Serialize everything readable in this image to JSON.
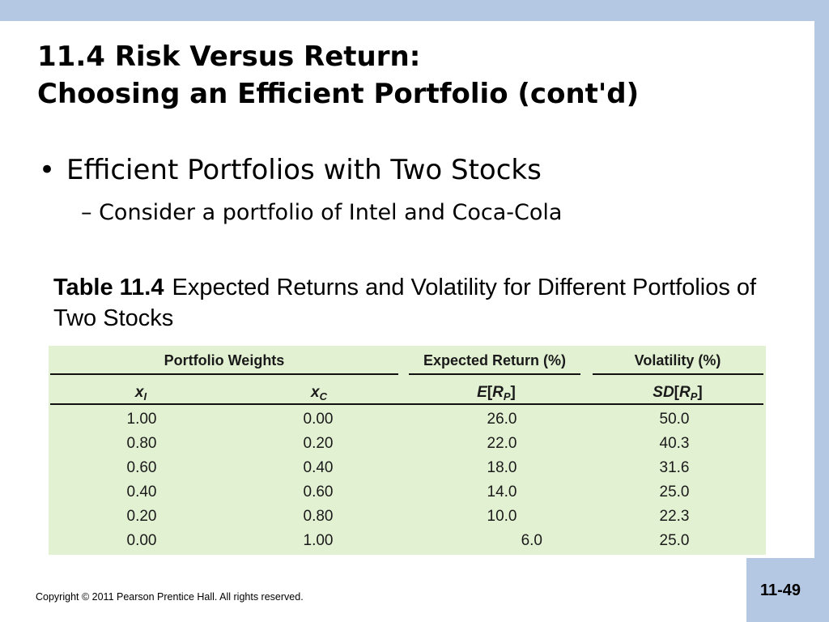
{
  "slide": {
    "title_line1": "11.4 Risk Versus Return:",
    "title_line2": "Choosing an Efficient Portfolio (cont'd)",
    "bullet_marker": "•",
    "bullet": "Efficient Portfolios with Two Stocks",
    "subbullet": "– Consider a portfolio of Intel and Coca-Cola",
    "caption_label": "Table 11.4",
    "caption_text": "Expected Returns and Volatility for Different Portfolios of Two Stocks",
    "copyright": "Copyright © 2011 Pearson Prentice Hall. All rights reserved.",
    "page_number": "11-49"
  },
  "table": {
    "group_headers": {
      "weights": "Portfolio Weights",
      "expected_return": "Expected Return (%)",
      "volatility": "Volatility (%)"
    },
    "columns": [
      {
        "symbol": "x",
        "subscript": "I"
      },
      {
        "symbol": "x",
        "subscript": "C"
      },
      {
        "symbol": "E",
        "open": "[",
        "inner": "R",
        "subscript": "P",
        "close": "]"
      },
      {
        "symbol": "SD",
        "open": "[",
        "inner": "R",
        "subscript": "P",
        "close": "]"
      }
    ],
    "rows": [
      [
        "1.00",
        "0.00",
        "26.0",
        "50.0"
      ],
      [
        "0.80",
        "0.20",
        "22.0",
        "40.3"
      ],
      [
        "0.60",
        "0.40",
        "18.0",
        "31.6"
      ],
      [
        "0.40",
        "0.60",
        "14.0",
        "25.0"
      ],
      [
        "0.20",
        "0.80",
        "10.0",
        "22.3"
      ],
      [
        "0.00",
        "1.00",
        "6.0",
        "25.0"
      ]
    ],
    "background_color": "#e3f1d3"
  },
  "colors": {
    "band": "#b4c8e3"
  }
}
